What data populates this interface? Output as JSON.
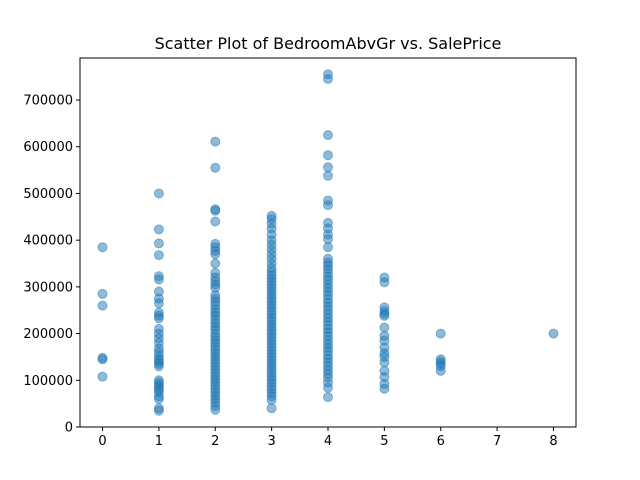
{
  "chart_data": {
    "type": "scatter",
    "title": "Scatter Plot of BedroomAbvGr vs. SalePrice",
    "xlabel": "",
    "ylabel": "",
    "xlim": [
      -0.4,
      8.4
    ],
    "ylim": [
      0,
      790000
    ],
    "xticks": [
      0,
      1,
      2,
      3,
      4,
      5,
      6,
      7,
      8
    ],
    "yticks": [
      0,
      100000,
      200000,
      300000,
      400000,
      500000,
      600000,
      700000
    ],
    "grid": false,
    "color": "#1f77b4",
    "alpha": 0.5,
    "points": [
      [
        0,
        385000
      ],
      [
        0,
        285000
      ],
      [
        0,
        260000
      ],
      [
        0,
        148000
      ],
      [
        0,
        145000
      ],
      [
        0,
        108000
      ],
      [
        1,
        500000
      ],
      [
        1,
        423000
      ],
      [
        1,
        393000
      ],
      [
        1,
        368000
      ],
      [
        1,
        323000
      ],
      [
        1,
        316000
      ],
      [
        1,
        290000
      ],
      [
        1,
        275000
      ],
      [
        1,
        265000
      ],
      [
        1,
        245000
      ],
      [
        1,
        238000
      ],
      [
        1,
        233000
      ],
      [
        1,
        210000
      ],
      [
        1,
        200000
      ],
      [
        1,
        190000
      ],
      [
        1,
        180000
      ],
      [
        1,
        168000
      ],
      [
        1,
        160000
      ],
      [
        1,
        152000
      ],
      [
        1,
        145000
      ],
      [
        1,
        140000
      ],
      [
        1,
        135000
      ],
      [
        1,
        130000
      ],
      [
        1,
        100000
      ],
      [
        1,
        95000
      ],
      [
        1,
        90000
      ],
      [
        1,
        85000
      ],
      [
        1,
        80000
      ],
      [
        1,
        75000
      ],
      [
        1,
        66000
      ],
      [
        1,
        60000
      ],
      [
        1,
        40000
      ],
      [
        1,
        35000
      ],
      [
        2,
        611000
      ],
      [
        2,
        555000
      ],
      [
        2,
        466000
      ],
      [
        2,
        463000
      ],
      [
        2,
        440000
      ],
      [
        2,
        392000
      ],
      [
        2,
        385000
      ],
      [
        2,
        377000
      ],
      [
        2,
        370000
      ],
      [
        2,
        350000
      ],
      [
        2,
        330000
      ],
      [
        2,
        320000
      ],
      [
        2,
        312000
      ],
      [
        2,
        305000
      ],
      [
        2,
        298000
      ],
      [
        2,
        282000
      ],
      [
        2,
        275000
      ],
      [
        2,
        268000
      ],
      [
        2,
        260000
      ],
      [
        2,
        252000
      ],
      [
        2,
        245000
      ],
      [
        2,
        238000
      ],
      [
        2,
        230000
      ],
      [
        2,
        222000
      ],
      [
        2,
        215000
      ],
      [
        2,
        208000
      ],
      [
        2,
        200000
      ],
      [
        2,
        193000
      ],
      [
        2,
        186000
      ],
      [
        2,
        179000
      ],
      [
        2,
        172000
      ],
      [
        2,
        165000
      ],
      [
        2,
        158000
      ],
      [
        2,
        151000
      ],
      [
        2,
        144000
      ],
      [
        2,
        137000
      ],
      [
        2,
        130000
      ],
      [
        2,
        123000
      ],
      [
        2,
        116000
      ],
      [
        2,
        109000
      ],
      [
        2,
        102000
      ],
      [
        2,
        95000
      ],
      [
        2,
        88000
      ],
      [
        2,
        81000
      ],
      [
        2,
        74000
      ],
      [
        2,
        67000
      ],
      [
        2,
        60000
      ],
      [
        2,
        53000
      ],
      [
        2,
        45000
      ],
      [
        2,
        37000
      ],
      [
        3,
        452000
      ],
      [
        3,
        445000
      ],
      [
        3,
        435000
      ],
      [
        3,
        425000
      ],
      [
        3,
        412000
      ],
      [
        3,
        400000
      ],
      [
        3,
        390000
      ],
      [
        3,
        380000
      ],
      [
        3,
        370000
      ],
      [
        3,
        360000
      ],
      [
        3,
        350000
      ],
      [
        3,
        340000
      ],
      [
        3,
        332000
      ],
      [
        3,
        325000
      ],
      [
        3,
        318000
      ],
      [
        3,
        311000
      ],
      [
        3,
        304000
      ],
      [
        3,
        297000
      ],
      [
        3,
        290000
      ],
      [
        3,
        283000
      ],
      [
        3,
        276000
      ],
      [
        3,
        269000
      ],
      [
        3,
        262000
      ],
      [
        3,
        255000
      ],
      [
        3,
        248000
      ],
      [
        3,
        241000
      ],
      [
        3,
        234000
      ],
      [
        3,
        227000
      ],
      [
        3,
        220000
      ],
      [
        3,
        213000
      ],
      [
        3,
        206000
      ],
      [
        3,
        199000
      ],
      [
        3,
        192000
      ],
      [
        3,
        185000
      ],
      [
        3,
        178000
      ],
      [
        3,
        171000
      ],
      [
        3,
        164000
      ],
      [
        3,
        157000
      ],
      [
        3,
        150000
      ],
      [
        3,
        143000
      ],
      [
        3,
        136000
      ],
      [
        3,
        129000
      ],
      [
        3,
        122000
      ],
      [
        3,
        115000
      ],
      [
        3,
        108000
      ],
      [
        3,
        101000
      ],
      [
        3,
        94000
      ],
      [
        3,
        87000
      ],
      [
        3,
        80000
      ],
      [
        3,
        73000
      ],
      [
        3,
        66000
      ],
      [
        3,
        58000
      ],
      [
        3,
        40000
      ],
      [
        4,
        755000
      ],
      [
        4,
        745000
      ],
      [
        4,
        625000
      ],
      [
        4,
        582000
      ],
      [
        4,
        556000
      ],
      [
        4,
        538000
      ],
      [
        4,
        485000
      ],
      [
        4,
        475000
      ],
      [
        4,
        437000
      ],
      [
        4,
        425000
      ],
      [
        4,
        412000
      ],
      [
        4,
        402000
      ],
      [
        4,
        385000
      ],
      [
        4,
        360000
      ],
      [
        4,
        352000
      ],
      [
        4,
        345000
      ],
      [
        4,
        338000
      ],
      [
        4,
        330000
      ],
      [
        4,
        322000
      ],
      [
        4,
        314000
      ],
      [
        4,
        306000
      ],
      [
        4,
        298000
      ],
      [
        4,
        290000
      ],
      [
        4,
        282000
      ],
      [
        4,
        274000
      ],
      [
        4,
        266000
      ],
      [
        4,
        258000
      ],
      [
        4,
        250000
      ],
      [
        4,
        242000
      ],
      [
        4,
        234000
      ],
      [
        4,
        226000
      ],
      [
        4,
        218000
      ],
      [
        4,
        210000
      ],
      [
        4,
        202000
      ],
      [
        4,
        194000
      ],
      [
        4,
        186000
      ],
      [
        4,
        178000
      ],
      [
        4,
        170000
      ],
      [
        4,
        162000
      ],
      [
        4,
        154000
      ],
      [
        4,
        146000
      ],
      [
        4,
        138000
      ],
      [
        4,
        130000
      ],
      [
        4,
        122000
      ],
      [
        4,
        114000
      ],
      [
        4,
        106000
      ],
      [
        4,
        95000
      ],
      [
        4,
        84000
      ],
      [
        4,
        64000
      ],
      [
        5,
        320000
      ],
      [
        5,
        310000
      ],
      [
        5,
        256000
      ],
      [
        5,
        248000
      ],
      [
        5,
        242000
      ],
      [
        5,
        238000
      ],
      [
        5,
        213000
      ],
      [
        5,
        195000
      ],
      [
        5,
        185000
      ],
      [
        5,
        170000
      ],
      [
        5,
        158000
      ],
      [
        5,
        150000
      ],
      [
        5,
        138000
      ],
      [
        5,
        120000
      ],
      [
        5,
        107000
      ],
      [
        5,
        92000
      ],
      [
        5,
        82000
      ],
      [
        6,
        200000
      ],
      [
        6,
        145000
      ],
      [
        6,
        140000
      ],
      [
        6,
        135000
      ],
      [
        6,
        130000
      ],
      [
        6,
        120000
      ],
      [
        8,
        200000
      ]
    ]
  }
}
